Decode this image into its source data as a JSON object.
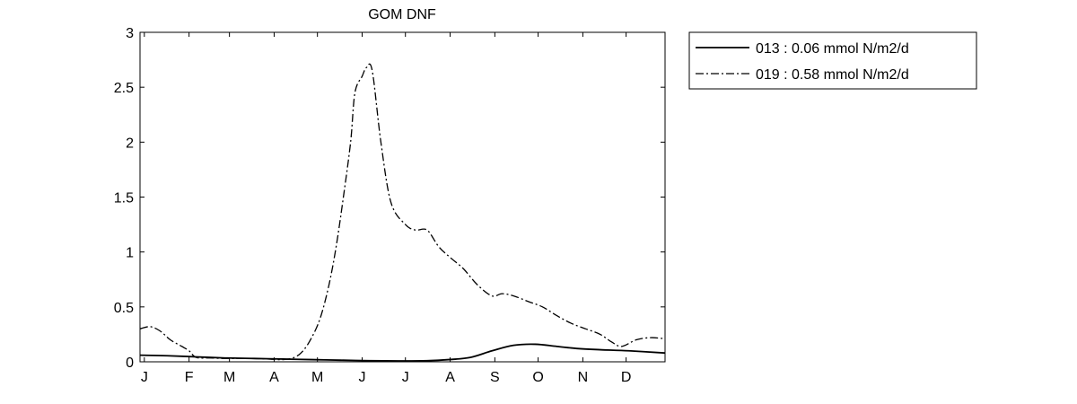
{
  "chart_data": {
    "type": "line",
    "title": "GOM DNF",
    "xlabel": "",
    "ylabel": "",
    "xlim": [
      1,
      365
    ],
    "ylim": [
      0,
      3
    ],
    "y_ticks": [
      "0",
      "0.5",
      "1",
      "1.5",
      "2",
      "2.5",
      "3"
    ],
    "y_tick_values": [
      0,
      0.5,
      1,
      1.5,
      2,
      2.5,
      3
    ],
    "x_ticks": [
      "J",
      "F",
      "M",
      "A",
      "M",
      "J",
      "J",
      "A",
      "S",
      "O",
      "N",
      "D"
    ],
    "x_tick_values": [
      4,
      35,
      63,
      94,
      124,
      155,
      185,
      216,
      247,
      277,
      308,
      338
    ],
    "grid": false,
    "legend_position": "outside-top-right",
    "series": [
      {
        "name": "013 : 0.06 mmol N/m2/d",
        "style": "solid",
        "color": "#000000",
        "x": [
          1,
          20,
          40,
          60,
          80,
          100,
          120,
          140,
          160,
          180,
          200,
          215,
          230,
          245,
          260,
          275,
          290,
          305,
          320,
          340,
          365
        ],
        "y": [
          0.06,
          0.055,
          0.045,
          0.035,
          0.03,
          0.025,
          0.02,
          0.015,
          0.01,
          0.008,
          0.01,
          0.02,
          0.04,
          0.1,
          0.15,
          0.16,
          0.14,
          0.12,
          0.11,
          0.1,
          0.08
        ]
      },
      {
        "name": "019 : 0.58 mmol N/m2/d",
        "style": "dashdot",
        "color": "#000000",
        "x": [
          1,
          8,
          15,
          22,
          30,
          35,
          40,
          50,
          60,
          70,
          80,
          90,
          100,
          108,
          114,
          120,
          126,
          132,
          137,
          142,
          147,
          150,
          155,
          158,
          162,
          168,
          175,
          185,
          192,
          200,
          208,
          216,
          225,
          235,
          245,
          252,
          260,
          270,
          280,
          290,
          300,
          310,
          320,
          328,
          335,
          345,
          355,
          365
        ],
        "y": [
          0.3,
          0.32,
          0.28,
          0.2,
          0.14,
          0.1,
          0.04,
          0.035,
          0.03,
          0.03,
          0.03,
          0.025,
          0.02,
          0.04,
          0.1,
          0.22,
          0.4,
          0.7,
          1.05,
          1.5,
          2.0,
          2.45,
          2.6,
          2.68,
          2.65,
          2.0,
          1.45,
          1.25,
          1.2,
          1.2,
          1.05,
          0.95,
          0.85,
          0.7,
          0.6,
          0.62,
          0.6,
          0.55,
          0.5,
          0.42,
          0.35,
          0.3,
          0.25,
          0.18,
          0.14,
          0.2,
          0.22,
          0.21
        ]
      }
    ]
  }
}
